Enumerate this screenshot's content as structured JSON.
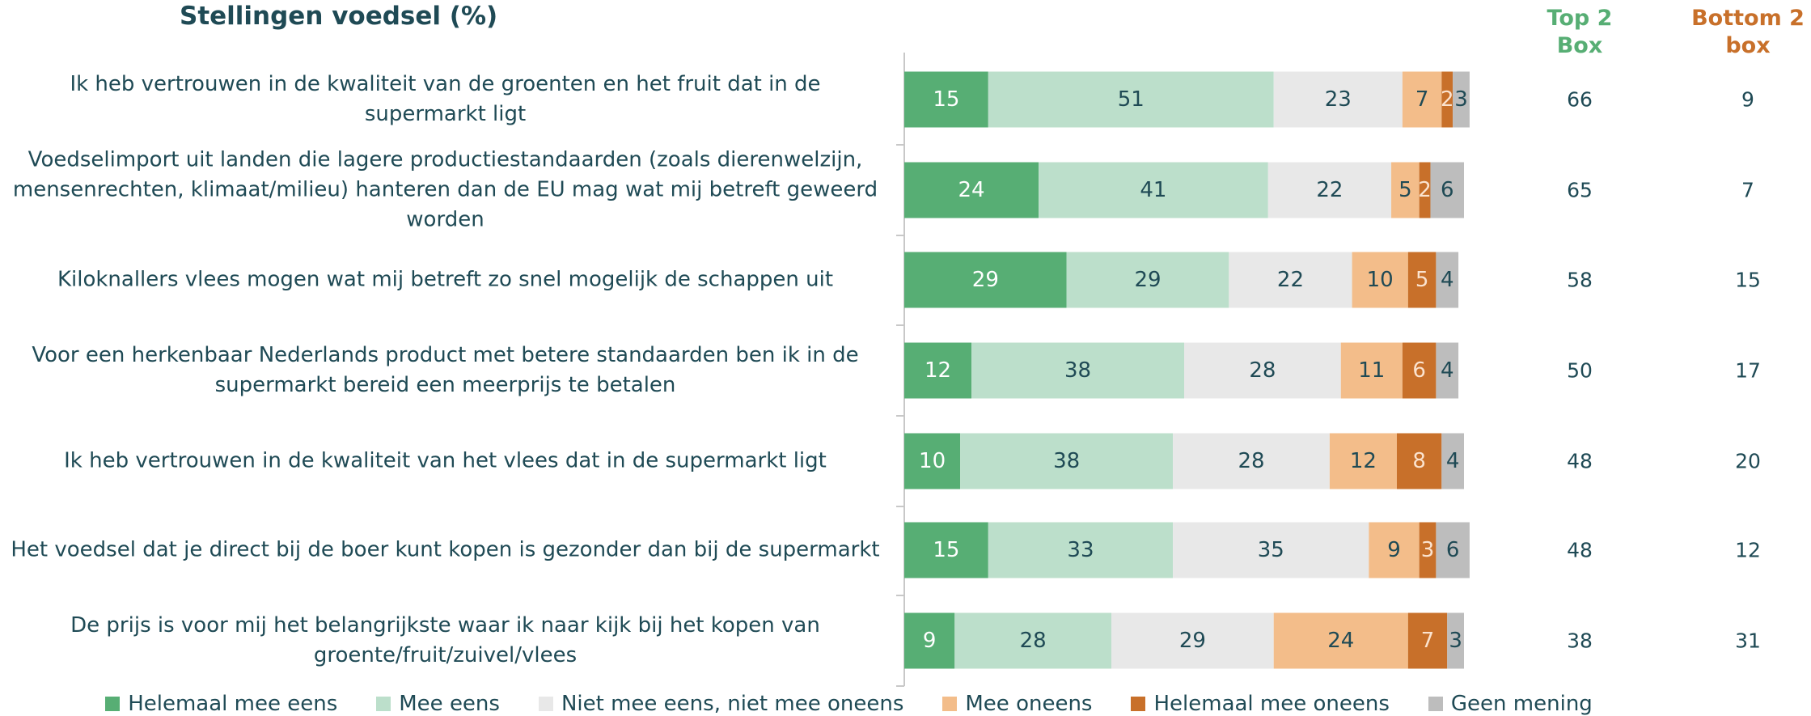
{
  "chart_data": {
    "type": "stacked-bar-horizontal",
    "title": "Stellingen voedsel (%)",
    "categories": [
      "Ik heb vertrouwen in de kwaliteit van de groenten en het fruit dat in de supermarkt ligt",
      "Voedselimport uit landen die lagere productiestandaarden (zoals dierenwelzijn, mensenrechten, klimaat/milieu) hanteren dan de EU mag wat mij betreft geweerd worden",
      "Kiloknallers vlees mogen wat mij betreft zo snel mogelijk de schappen uit",
      "Voor een herkenbaar Nederlands product met betere standaarden ben ik in de supermarkt bereid een meerprijs te betalen",
      "Ik heb vertrouwen in de kwaliteit van het vlees dat in de supermarkt ligt",
      "Het voedsel dat je direct bij de boer kunt kopen is gezonder dan bij de supermarkt",
      "De prijs is voor mij het belangrijkste waar ik naar kijk bij het kopen van groente/fruit/zuivel/vlees"
    ],
    "series": [
      {
        "name": "Helemaal mee eens",
        "color": "#57ae74",
        "label_color": "#ffffff",
        "values": [
          15,
          24,
          29,
          12,
          10,
          15,
          9
        ]
      },
      {
        "name": "Mee eens",
        "color": "#bcdfcb",
        "label_color": "#1f4a55",
        "values": [
          51,
          41,
          29,
          38,
          38,
          33,
          28
        ]
      },
      {
        "name": "Niet mee eens, niet mee oneens",
        "color": "#e8e8e8",
        "label_color": "#1f4a55",
        "values": [
          23,
          22,
          22,
          28,
          28,
          35,
          29
        ]
      },
      {
        "name": "Mee oneens",
        "color": "#f3bd8a",
        "label_color": "#1f4a55",
        "values": [
          7,
          5,
          10,
          11,
          12,
          9,
          24
        ]
      },
      {
        "name": "Helemaal mee oneens",
        "color": "#c8702a",
        "label_color": "#fbe3cf",
        "values": [
          2,
          2,
          5,
          6,
          8,
          3,
          7
        ]
      },
      {
        "name": "Geen mening",
        "color": "#bdbdbd",
        "label_color": "#1f4a55",
        "values": [
          3,
          6,
          4,
          4,
          4,
          6,
          3
        ]
      }
    ],
    "xlim": [
      0,
      100
    ],
    "columns": [
      {
        "name": "Top 2 Box",
        "color": "#57ae74",
        "values": [
          66,
          65,
          58,
          50,
          48,
          48,
          38
        ]
      },
      {
        "name": "Bottom 2 box",
        "color": "#c8702a",
        "values": [
          9,
          7,
          15,
          17,
          20,
          12,
          31
        ]
      }
    ]
  }
}
